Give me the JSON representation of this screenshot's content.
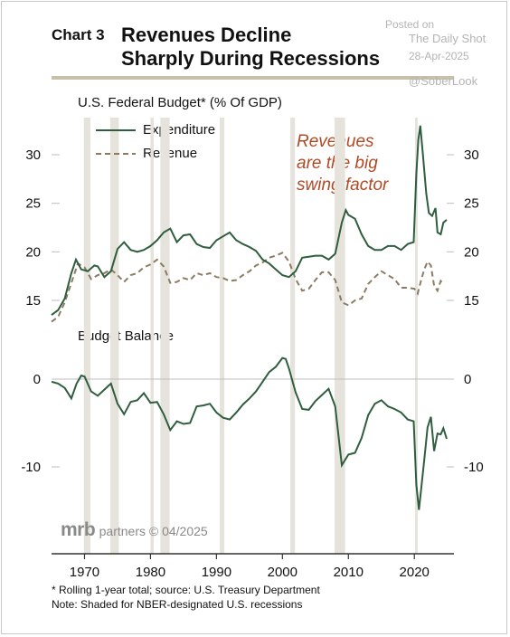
{
  "header": {
    "chart_number": "Chart 3",
    "title_line1": "Revenues Decline",
    "title_line2": "Sharply During Recessions"
  },
  "watermark": {
    "posted_on": "Posted on",
    "source": "The Daily Shot",
    "date": "28-Apr-2025",
    "handle": "@SoberLook"
  },
  "annotation": {
    "line1": "Revenues",
    "line2": "are the big",
    "line3": "swing factor"
  },
  "logo": {
    "mark": "mrb",
    "text": "partners © 04/2025"
  },
  "footer": {
    "note1": "* Rolling 1-year total; source: U.S. Treasury Department",
    "note2": "Note: Shaded for NBER-designated U.S. recessions"
  },
  "colors": {
    "expenditure": "#2f5e3e",
    "revenue": "#8c7b62",
    "balance": "#2f5e3e",
    "recession_shade": "#e6e3dc",
    "title_rule": "#c9c0aa",
    "annotation": "#b04a24"
  },
  "chart_data": [
    {
      "type": "line",
      "title": "U.S. Federal Budget* (% Of GDP)",
      "legend_position": "top-left",
      "ylim": [
        12.5,
        34
      ],
      "y_ticks": [
        15,
        20,
        25,
        30
      ],
      "xlim": [
        1965,
        2026
      ],
      "recessions": [
        [
          1969.9,
          1970.9
        ],
        [
          1973.9,
          1975.2
        ],
        [
          1980.0,
          1980.5
        ],
        [
          1981.5,
          1982.9
        ],
        [
          1990.5,
          1991.2
        ],
        [
          2001.2,
          2001.9
        ],
        [
          2007.9,
          2009.5
        ],
        [
          2020.1,
          2020.4
        ]
      ],
      "series": [
        {
          "name": "Expenditure",
          "style": "solid",
          "points": [
            [
              1965,
              13.5
            ],
            [
              1966,
              14.0
            ],
            [
              1967,
              15.2
            ],
            [
              1968,
              17.8
            ],
            [
              1968.7,
              19.2
            ],
            [
              1969.5,
              18.2
            ],
            [
              1970.5,
              18.0
            ],
            [
              1971.5,
              18.6
            ],
            [
              1972,
              18.5
            ],
            [
              1973,
              17.4
            ],
            [
              1974,
              18.0
            ],
            [
              1975,
              20.3
            ],
            [
              1976,
              21.0
            ],
            [
              1977,
              20.2
            ],
            [
              1978,
              20.0
            ],
            [
              1979,
              20.2
            ],
            [
              1980,
              20.6
            ],
            [
              1981,
              21.2
            ],
            [
              1982,
              22.0
            ],
            [
              1983,
              22.4
            ],
            [
              1984,
              21.0
            ],
            [
              1985,
              21.7
            ],
            [
              1986,
              21.8
            ],
            [
              1987,
              20.8
            ],
            [
              1988,
              20.5
            ],
            [
              1989,
              20.4
            ],
            [
              1990,
              21.2
            ],
            [
              1991,
              21.6
            ],
            [
              1992,
              22.0
            ],
            [
              1993,
              21.2
            ],
            [
              1994,
              20.8
            ],
            [
              1995,
              20.5
            ],
            [
              1996,
              20.1
            ],
            [
              1997,
              19.2
            ],
            [
              1998,
              18.8
            ],
            [
              1999,
              18.2
            ],
            [
              2000,
              17.6
            ],
            [
              2001,
              17.4
            ],
            [
              2002,
              18.0
            ],
            [
              2003,
              19.4
            ],
            [
              2004,
              19.5
            ],
            [
              2005,
              19.6
            ],
            [
              2006,
              19.6
            ],
            [
              2007,
              19.2
            ],
            [
              2008,
              19.8
            ],
            [
              2009,
              23.0
            ],
            [
              2009.6,
              24.3
            ],
            [
              2010,
              23.8
            ],
            [
              2011,
              23.4
            ],
            [
              2012,
              21.8
            ],
            [
              2013,
              20.6
            ],
            [
              2014,
              20.2
            ],
            [
              2015,
              20.2
            ],
            [
              2016,
              20.6
            ],
            [
              2017,
              20.6
            ],
            [
              2018,
              20.2
            ],
            [
              2019,
              20.8
            ],
            [
              2019.9,
              21.0
            ],
            [
              2020.3,
              28.0
            ],
            [
              2020.6,
              31.5
            ],
            [
              2020.9,
              33.0
            ],
            [
              2021.3,
              30.0
            ],
            [
              2021.8,
              26.0
            ],
            [
              2022.2,
              24.0
            ],
            [
              2022.7,
              23.7
            ],
            [
              2023.2,
              24.5
            ],
            [
              2023.5,
              22.0
            ],
            [
              2024,
              21.8
            ],
            [
              2024.4,
              23.0
            ],
            [
              2024.9,
              23.3
            ]
          ]
        },
        {
          "name": "Revenue",
          "style": "dashed",
          "points": [
            [
              1965,
              12.8
            ],
            [
              1966,
              13.3
            ],
            [
              1967,
              14.8
            ],
            [
              1968,
              16.8
            ],
            [
              1969,
              18.8
            ],
            [
              1970,
              18.4
            ],
            [
              1971,
              17.2
            ],
            [
              1972,
              17.6
            ],
            [
              1973,
              17.8
            ],
            [
              1974,
              18.2
            ],
            [
              1975,
              17.6
            ],
            [
              1976,
              16.9
            ],
            [
              1977,
              17.6
            ],
            [
              1978,
              17.8
            ],
            [
              1979,
              18.4
            ],
            [
              1980,
              18.7
            ],
            [
              1981,
              19.2
            ],
            [
              1982,
              18.5
            ],
            [
              1983,
              16.8
            ],
            [
              1984,
              16.9
            ],
            [
              1985,
              17.3
            ],
            [
              1986,
              17.1
            ],
            [
              1987,
              17.8
            ],
            [
              1988,
              17.6
            ],
            [
              1989,
              17.8
            ],
            [
              1990,
              17.4
            ],
            [
              1991,
              17.3
            ],
            [
              1992,
              17.0
            ],
            [
              1993,
              17.1
            ],
            [
              1994,
              17.6
            ],
            [
              1995,
              18.0
            ],
            [
              1996,
              18.6
            ],
            [
              1997,
              18.9
            ],
            [
              1998,
              19.4
            ],
            [
              1999,
              19.6
            ],
            [
              2000,
              19.9
            ],
            [
              2001,
              19.0
            ],
            [
              2002,
              17.2
            ],
            [
              2003,
              16.0
            ],
            [
              2004,
              16.2
            ],
            [
              2005,
              17.1
            ],
            [
              2006,
              17.9
            ],
            [
              2007,
              17.9
            ],
            [
              2008,
              17.1
            ],
            [
              2009,
              14.8
            ],
            [
              2010,
              14.5
            ],
            [
              2011,
              15.0
            ],
            [
              2012,
              15.2
            ],
            [
              2013,
              16.7
            ],
            [
              2014,
              17.4
            ],
            [
              2015,
              18.0
            ],
            [
              2016,
              17.6
            ],
            [
              2017,
              17.2
            ],
            [
              2018,
              16.3
            ],
            [
              2019,
              16.3
            ],
            [
              2020,
              16.2
            ],
            [
              2020.5,
              15.7
            ],
            [
              2021,
              17.0
            ],
            [
              2021.5,
              18.2
            ],
            [
              2022,
              19.0
            ],
            [
              2022.5,
              18.6
            ],
            [
              2023,
              16.5
            ],
            [
              2023.5,
              16.0
            ],
            [
              2024,
              17.0
            ],
            [
              2024.5,
              16.6
            ]
          ]
        }
      ]
    },
    {
      "type": "line",
      "title": "Budget Balance",
      "ylim": [
        -14,
        3.5
      ],
      "y_ticks": [
        -10,
        0
      ],
      "xlim": [
        1965,
        2026
      ],
      "x_ticks": [
        1970,
        1980,
        1990,
        2000,
        2010,
        2020
      ],
      "recessions": [
        [
          1969.9,
          1970.9
        ],
        [
          1973.9,
          1975.2
        ],
        [
          1980.0,
          1980.5
        ],
        [
          1981.5,
          1982.9
        ],
        [
          1990.5,
          1991.2
        ],
        [
          2001.2,
          2001.9
        ],
        [
          2007.9,
          2009.5
        ],
        [
          2020.1,
          2020.4
        ]
      ],
      "series": [
        {
          "name": "",
          "style": "solid",
          "points": [
            [
              1965,
              -0.3
            ],
            [
              1966,
              -0.5
            ],
            [
              1967,
              -1.0
            ],
            [
              1968,
              -2.2
            ],
            [
              1968.8,
              -0.5
            ],
            [
              1969.5,
              0.4
            ],
            [
              1970,
              0.3
            ],
            [
              1971,
              -1.4
            ],
            [
              1972,
              -1.9
            ],
            [
              1973,
              -1.2
            ],
            [
              1974,
              -0.5
            ],
            [
              1975,
              -2.8
            ],
            [
              1976,
              -4.0
            ],
            [
              1977,
              -2.6
            ],
            [
              1978,
              -2.4
            ],
            [
              1979,
              -1.6
            ],
            [
              1980,
              -2.7
            ],
            [
              1981,
              -2.6
            ],
            [
              1982,
              -4.0
            ],
            [
              1983,
              -5.8
            ],
            [
              1984,
              -4.8
            ],
            [
              1985,
              -5.1
            ],
            [
              1986,
              -5.0
            ],
            [
              1987,
              -3.1
            ],
            [
              1988,
              -3.0
            ],
            [
              1989,
              -2.8
            ],
            [
              1990,
              -3.8
            ],
            [
              1991,
              -4.4
            ],
            [
              1992,
              -4.6
            ],
            [
              1993,
              -3.8
            ],
            [
              1994,
              -2.9
            ],
            [
              1995,
              -2.2
            ],
            [
              1996,
              -1.4
            ],
            [
              1997,
              -0.3
            ],
            [
              1998,
              0.8
            ],
            [
              1999,
              1.4
            ],
            [
              2000,
              2.4
            ],
            [
              2000.5,
              2.3
            ],
            [
              2001,
              1.2
            ],
            [
              2002,
              -1.5
            ],
            [
              2003,
              -3.4
            ],
            [
              2004,
              -3.5
            ],
            [
              2005,
              -2.5
            ],
            [
              2006,
              -1.8
            ],
            [
              2007,
              -1.1
            ],
            [
              2008,
              -3.1
            ],
            [
              2009,
              -9.8
            ],
            [
              2010,
              -8.6
            ],
            [
              2011,
              -8.4
            ],
            [
              2012,
              -6.7
            ],
            [
              2013,
              -4.1
            ],
            [
              2014,
              -2.8
            ],
            [
              2015,
              -2.4
            ],
            [
              2016,
              -3.1
            ],
            [
              2017,
              -3.4
            ],
            [
              2018,
              -3.8
            ],
            [
              2019,
              -4.6
            ],
            [
              2019.9,
              -4.8
            ],
            [
              2020.3,
              -12.0
            ],
            [
              2020.7,
              -14.9
            ],
            [
              2021.1,
              -12.0
            ],
            [
              2021.6,
              -8.5
            ],
            [
              2022,
              -5.5
            ],
            [
              2022.5,
              -4.3
            ],
            [
              2023,
              -8.2
            ],
            [
              2023.5,
              -6.2
            ],
            [
              2024,
              -6.3
            ],
            [
              2024.4,
              -5.6
            ],
            [
              2024.9,
              -6.8
            ]
          ]
        }
      ]
    }
  ]
}
